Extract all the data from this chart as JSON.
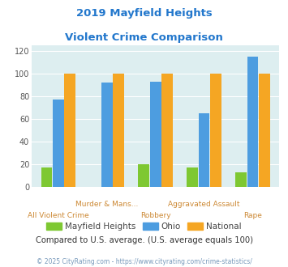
{
  "title_line1": "2019 Mayfield Heights",
  "title_line2": "Violent Crime Comparison",
  "categories": [
    "All Violent Crime",
    "Murder & Mans...",
    "Robbery",
    "Aggravated Assault",
    "Rape"
  ],
  "mayfield": [
    17,
    0,
    20,
    17,
    13
  ],
  "ohio": [
    77,
    92,
    93,
    65,
    115
  ],
  "national": [
    100,
    100,
    100,
    100,
    100
  ],
  "color_mayfield": "#7ec832",
  "color_ohio": "#4d9de0",
  "color_national": "#f5a623",
  "ylim": [
    0,
    125
  ],
  "yticks": [
    0,
    20,
    40,
    60,
    80,
    100,
    120
  ],
  "bg_color": "#ddeef0",
  "title_color": "#2277cc",
  "xlabel_color": "#cc8833",
  "legend_label_color": "#444444",
  "footnote_color": "#333333",
  "copyright_color": "#7799bb",
  "footnote": "Compared to U.S. average. (U.S. average equals 100)",
  "copyright": "© 2025 CityRating.com - https://www.cityrating.com/crime-statistics/"
}
